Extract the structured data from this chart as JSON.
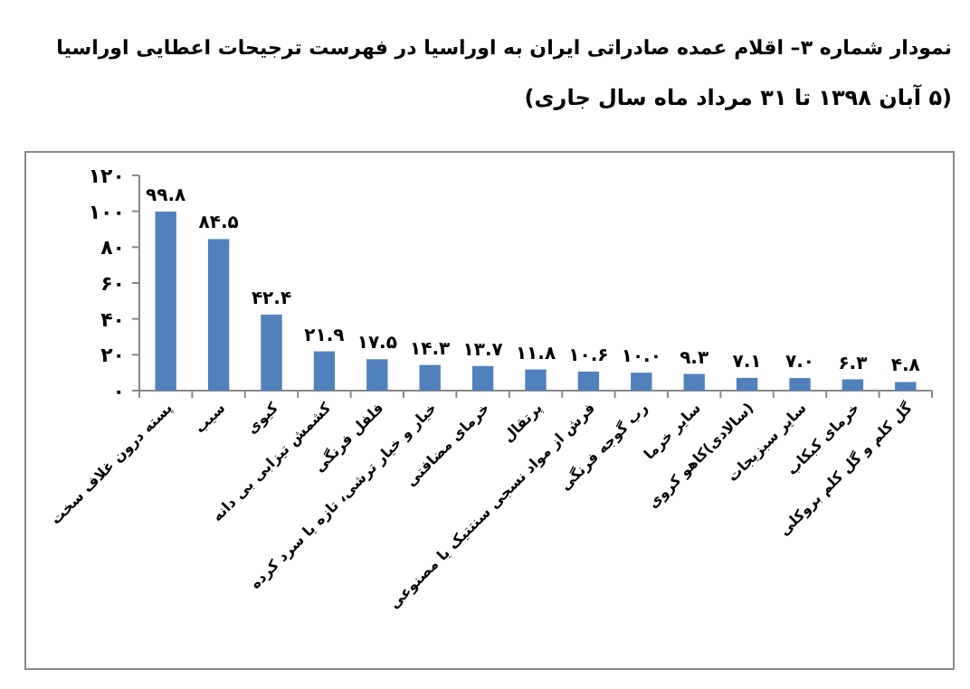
{
  "chart_data": {
    "type": "bar",
    "title": "نمودار شماره ۳– اقلام عمده صادراتی ایران به اوراسیا در فهرست ترجیحات اعطایی اوراسیا",
    "subtitle": "(۵ آبان ۱۳۹۸ تا ۳۱ مرداد ماه سال جاری)",
    "categories": [
      "پسته درون غلاف سخت",
      "سیب",
      "کیوی",
      "کشمش تیزابی بی دانه",
      "فلفل فرنگی",
      "خیار و خیار ترشی، تازه یا سرد کرده",
      "خرمای مضافتی",
      "پرتقال",
      "فرش از مواد نسجی سنتتیک یا مصنوعی",
      "رب گوجه فرنگی",
      "سایر خرما",
      "(سالادی)کاهو کروی",
      "سایر سبزیجات",
      "خرمای کبکاب",
      "گل کلم و گل کلم بروکلی"
    ],
    "values": [
      99.8,
      84.5,
      42.4,
      21.9,
      17.5,
      14.3,
      13.7,
      11.8,
      10.6,
      10.0,
      9.3,
      7.1,
      7.0,
      6.3,
      4.8
    ],
    "value_labels": [
      "۹۹.۸",
      "۸۴.۵",
      "۴۲.۴",
      "۲۱.۹",
      "۱۷.۵",
      "۱۴.۳",
      "۱۳.۷",
      "۱۱.۸",
      "۱۰.۶",
      "۱۰.۰",
      "۹.۳",
      "۷.۱",
      "۷.۰",
      "۶.۳",
      "۴.۸"
    ],
    "color": "#4f81bd",
    "ylim": [
      0,
      120
    ],
    "yticks": [
      {
        "value": 0,
        "label": "۰"
      },
      {
        "value": 20,
        "label": "۲۰"
      },
      {
        "value": 40,
        "label": "۴۰"
      },
      {
        "value": 60,
        "label": "۶۰"
      },
      {
        "value": 80,
        "label": "۸۰"
      },
      {
        "value": 100,
        "label": "۱۰۰"
      },
      {
        "value": 120,
        "label": "۱۲۰"
      }
    ],
    "grid": false
  }
}
